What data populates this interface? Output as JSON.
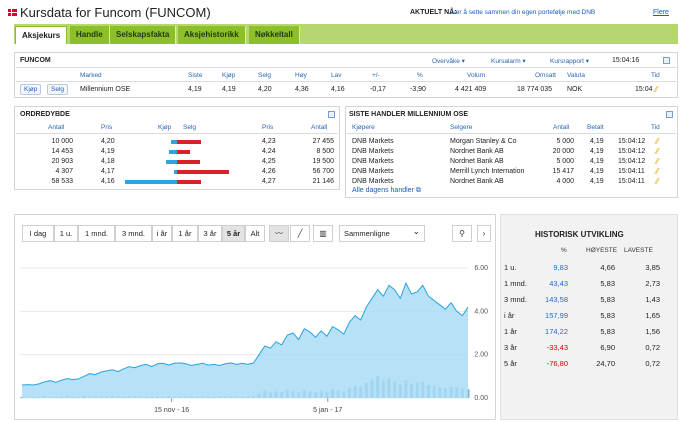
{
  "header": {
    "title": "Kursdata for Funcom (FUNCOM)",
    "aktuelt_label": "AKTUELT NÅ:",
    "aktuelt_text": "Lær å sette sammen din egen portefølje med DNB",
    "flere": "Flere"
  },
  "tabs": [
    {
      "label": "Aksjekurs",
      "active": true
    },
    {
      "label": "Handle"
    },
    {
      "label": "Selskapsfakta"
    },
    {
      "label": "Aksjehistorikk"
    },
    {
      "label": "Nøkkeltall"
    }
  ],
  "quote": {
    "heading": "FUNCOM",
    "toolbar": {
      "overvake": "Overvåke",
      "kursalarm": "Kursalarm",
      "kursrapport": "Kursrapport",
      "time": "15:04:16"
    },
    "columns": {
      "marked": "Marked",
      "siste": "Siste",
      "kjop": "Kjøp",
      "selg": "Selg",
      "hoy": "Høy",
      "lav": "Lav",
      "endring": "+/-",
      "prosent": "%",
      "volum": "Volum",
      "omsatt": "Omsatt",
      "valuta": "Valuta",
      "tid": "Tid"
    },
    "buy_label": "Kjøp",
    "sell_label": "Selg",
    "row": {
      "marked": "Millennium OSE",
      "siste": "4,19",
      "kjop": "4,19",
      "selg": "4,20",
      "hoy": "4,36",
      "lav": "4,16",
      "endring": "-0,17",
      "prosent": "-3,90",
      "volum": "4 421 409",
      "omsatt": "18 774 035",
      "valuta": "NOK",
      "tid": "15:04"
    }
  },
  "orderbook": {
    "heading": "ORDREDYBDE",
    "columns": {
      "antall": "Antall",
      "pris": "Pris",
      "kjop": "Kjøp",
      "selg": "Selg",
      "pris2": "Pris",
      "antall2": "Antall"
    },
    "rows": [
      {
        "bid_qty": "10 000",
        "bid_price": "4,20",
        "ask_price": "4,23",
        "ask_qty": "27 455",
        "bid_bar": 0.11,
        "ask_bar": 0.46
      },
      {
        "bid_qty": "14 453",
        "bid_price": "4,19",
        "ask_price": "4,24",
        "ask_qty": "8 500",
        "bid_bar": 0.16,
        "ask_bar": 0.25
      },
      {
        "bid_qty": "20 903",
        "bid_price": "4,18",
        "ask_price": "4,25",
        "ask_qty": "19 500",
        "bid_bar": 0.22,
        "ask_bar": 0.44
      },
      {
        "bid_qty": "4 307",
        "bid_price": "4,17",
        "ask_price": "4,26",
        "ask_qty": "56 700",
        "bid_bar": 0.06,
        "ask_bar": 1.0
      },
      {
        "bid_qty": "58 533",
        "bid_price": "4,16",
        "ask_price": "4,27",
        "ask_qty": "21 146",
        "bid_bar": 1.0,
        "ask_bar": 0.46
      }
    ]
  },
  "trades": {
    "heading": "SISTE HANDLER MILLENNIUM OSE",
    "columns": {
      "kjopere": "Kjøpere",
      "selgere": "Selgere",
      "antall": "Antall",
      "betalt": "Betalt",
      "tid": "Tid"
    },
    "rows": [
      {
        "buyer": "DNB Markets",
        "seller": "Morgan Stanley & Co",
        "qty": "5 000",
        "price": "4,19",
        "time": "15:04:12"
      },
      {
        "buyer": "DNB Markets",
        "seller": "Nordnet Bank AB",
        "qty": "20 000",
        "price": "4,19",
        "time": "15:04:12"
      },
      {
        "buyer": "DNB Markets",
        "seller": "Nordnet Bank AB",
        "qty": "5 000",
        "price": "4,19",
        "time": "15:04:12"
      },
      {
        "buyer": "DNB Markets",
        "seller": "Merrill Lynch Internation",
        "qty": "15 417",
        "price": "4,19",
        "time": "15:04:11"
      },
      {
        "buyer": "DNB Markets",
        "seller": "Nordnet Bank AB",
        "qty": "4 000",
        "price": "4,19",
        "time": "15:04:11"
      }
    ],
    "all_link": "Alle dagens handler"
  },
  "chart_toolbar": {
    "periods": [
      "I dag",
      "1 u.",
      "1 mnd.",
      "3 mnd.",
      "i år",
      "1 år",
      "3 år",
      "5 år",
      "Alt"
    ],
    "active_period": "5 år",
    "compare": "Sammenligne"
  },
  "chart_data": {
    "type": "area",
    "ylim": [
      0,
      6
    ],
    "yticks": [
      "0.00",
      "2.00",
      "4.00",
      "6.00"
    ],
    "xticks": [
      "15 nov - 16",
      "5 jan - 17"
    ],
    "xlabel": "",
    "ylabel": "",
    "line_color": "#2aa3de",
    "fill_color": "#a9dcf5",
    "values": [
      0.6,
      0.62,
      0.6,
      0.65,
      0.75,
      0.8,
      0.72,
      0.82,
      0.9,
      0.85,
      0.88,
      1.0,
      1.12,
      1.08,
      1.2,
      1.25,
      1.3,
      1.22,
      1.35,
      1.45,
      1.4,
      1.5,
      1.55,
      1.45,
      1.58,
      1.6,
      1.52,
      1.6,
      1.62,
      1.58,
      1.5,
      1.55,
      1.6,
      1.52,
      1.55,
      1.5,
      1.58,
      1.62,
      1.55,
      1.6,
      1.55,
      1.62,
      2.0,
      2.4,
      2.3,
      2.6,
      2.45,
      2.9,
      3.0,
      2.7,
      3.2,
      3.05,
      2.8,
      3.1,
      2.85,
      3.3,
      3.15,
      2.95,
      3.5,
      3.8,
      3.6,
      4.2,
      4.6,
      5.0,
      4.7,
      5.2,
      5.0,
      4.6,
      5.3,
      4.8,
      4.9,
      5.2,
      4.7,
      4.5,
      4.3,
      4.1,
      4.4,
      4.0,
      3.8,
      4.19
    ],
    "volume": [
      0.05,
      0.03,
      0.06,
      0.04,
      0.08,
      0.05,
      0.04,
      0.07,
      0.09,
      0.05,
      0.06,
      0.1,
      0.08,
      0.06,
      0.07,
      0.05,
      0.09,
      0.06,
      0.05,
      0.08,
      0.07,
      0.06,
      0.05,
      0.07,
      0.06,
      0.05,
      0.08,
      0.06,
      0.05,
      0.07,
      0.06,
      0.05,
      0.06,
      0.07,
      0.05,
      0.06,
      0.05,
      0.07,
      0.06,
      0.05,
      0.06,
      0.07,
      0.2,
      0.35,
      0.25,
      0.3,
      0.28,
      0.4,
      0.32,
      0.27,
      0.36,
      0.3,
      0.26,
      0.33,
      0.29,
      0.4,
      0.35,
      0.3,
      0.45,
      0.55,
      0.5,
      0.7,
      0.85,
      1.0,
      0.8,
      0.9,
      0.75,
      0.6,
      0.8,
      0.65,
      0.7,
      0.75,
      0.6,
      0.55,
      0.5,
      0.45,
      0.5,
      0.48,
      0.42,
      0.4
    ]
  },
  "historisk": {
    "heading": "HISTORISK UTVIKLING",
    "columns": {
      "prosent": "%",
      "hoyeste": "HØYESTE",
      "laveste": "LAVESTE"
    },
    "rows": [
      {
        "period": "1 u.",
        "pct": "9,83",
        "high": "4,66",
        "low": "3,85",
        "neg": false
      },
      {
        "period": "1 mnd.",
        "pct": "43,43",
        "high": "5,83",
        "low": "2,73",
        "neg": false
      },
      {
        "period": "3 mnd.",
        "pct": "143,58",
        "high": "5,83",
        "low": "1,43",
        "neg": false
      },
      {
        "period": "i år",
        "pct": "157,99",
        "high": "5,83",
        "low": "1,65",
        "neg": false
      },
      {
        "period": "1 år",
        "pct": "174,22",
        "high": "5,83",
        "low": "1,56",
        "neg": false
      },
      {
        "period": "3 år",
        "pct": "-33,43",
        "high": "6,90",
        "low": "0,72",
        "neg": true
      },
      {
        "period": "5 år",
        "pct": "-76,80",
        "high": "24,70",
        "low": "0,72",
        "neg": true
      }
    ]
  }
}
